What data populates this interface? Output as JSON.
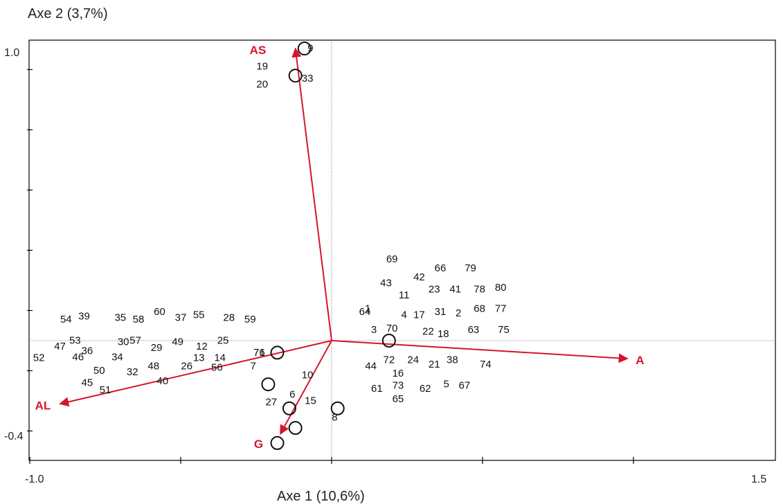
{
  "chart_data": {
    "type": "scatter",
    "title": "",
    "xlabel": "Axe 1 (10,6%)",
    "ylabel": "Axe 2 (3,7%)",
    "xlim": [
      -1.0,
      1.5
    ],
    "ylim": [
      -0.4,
      1.0
    ],
    "x_tick_labels": [
      "-1.0",
      "1.5"
    ],
    "y_tick_labels": [
      "1.0",
      "-0.4"
    ],
    "x_ticks": [
      -1.0,
      -0.5,
      0.0,
      0.5,
      1.0
    ],
    "y_ticks": [
      -0.3,
      -0.1,
      0.1,
      0.3,
      0.5,
      0.7,
      0.9
    ],
    "reference_lines": {
      "x": 0,
      "y": 0
    },
    "vector_color": "#d7142b",
    "vectors": [
      {
        "name": "AS",
        "x": -0.12,
        "y": 0.97
      },
      {
        "name": "A",
        "x": 0.98,
        "y": -0.06
      },
      {
        "name": "AL",
        "x": -0.9,
        "y": -0.21
      },
      {
        "name": "G",
        "x": -0.17,
        "y": -0.31
      }
    ],
    "circles": [
      {
        "x": -0.09,
        "y": 0.97
      },
      {
        "x": -0.12,
        "y": 0.88
      },
      {
        "x": 0.19,
        "y": 0.0
      },
      {
        "x": -0.18,
        "y": -0.04
      },
      {
        "x": -0.21,
        "y": -0.145
      },
      {
        "x": -0.14,
        "y": -0.225
      },
      {
        "x": 0.02,
        "y": -0.225
      },
      {
        "x": -0.12,
        "y": -0.29
      },
      {
        "x": -0.18,
        "y": -0.34
      }
    ],
    "points": [
      {
        "label": "9",
        "x": -0.07,
        "y": 0.96
      },
      {
        "label": "19",
        "x": -0.23,
        "y": 0.9
      },
      {
        "label": "33",
        "x": -0.08,
        "y": 0.86
      },
      {
        "label": "20",
        "x": -0.23,
        "y": 0.84
      },
      {
        "label": "69",
        "x": 0.2,
        "y": 0.26
      },
      {
        "label": "66",
        "x": 0.36,
        "y": 0.23
      },
      {
        "label": "79",
        "x": 0.46,
        "y": 0.23
      },
      {
        "label": "42",
        "x": 0.29,
        "y": 0.2
      },
      {
        "label": "43",
        "x": 0.18,
        "y": 0.18
      },
      {
        "label": "23",
        "x": 0.34,
        "y": 0.16
      },
      {
        "label": "41",
        "x": 0.41,
        "y": 0.16
      },
      {
        "label": "78",
        "x": 0.49,
        "y": 0.16
      },
      {
        "label": "80",
        "x": 0.56,
        "y": 0.165
      },
      {
        "label": "11",
        "x": 0.24,
        "y": 0.14
      },
      {
        "label": "1",
        "x": 0.12,
        "y": 0.095
      },
      {
        "label": "64",
        "x": 0.11,
        "y": 0.085
      },
      {
        "label": "68",
        "x": 0.49,
        "y": 0.095
      },
      {
        "label": "77",
        "x": 0.56,
        "y": 0.095
      },
      {
        "label": "31",
        "x": 0.36,
        "y": 0.085
      },
      {
        "label": "2",
        "x": 0.42,
        "y": 0.08
      },
      {
        "label": "4",
        "x": 0.24,
        "y": 0.075
      },
      {
        "label": "17",
        "x": 0.29,
        "y": 0.075
      },
      {
        "label": "70",
        "x": 0.2,
        "y": 0.03
      },
      {
        "label": "3",
        "x": 0.14,
        "y": 0.025
      },
      {
        "label": "63",
        "x": 0.47,
        "y": 0.025
      },
      {
        "label": "75",
        "x": 0.57,
        "y": 0.025
      },
      {
        "label": "22",
        "x": 0.32,
        "y": 0.02
      },
      {
        "label": "18",
        "x": 0.37,
        "y": 0.012
      },
      {
        "label": "72",
        "x": 0.19,
        "y": -0.075
      },
      {
        "label": "24",
        "x": 0.27,
        "y": -0.075
      },
      {
        "label": "38",
        "x": 0.4,
        "y": -0.075
      },
      {
        "label": "44",
        "x": 0.13,
        "y": -0.095
      },
      {
        "label": "21",
        "x": 0.34,
        "y": -0.09
      },
      {
        "label": "74",
        "x": 0.51,
        "y": -0.09
      },
      {
        "label": "16",
        "x": 0.22,
        "y": -0.12
      },
      {
        "label": "73",
        "x": 0.22,
        "y": -0.16
      },
      {
        "label": "5",
        "x": 0.38,
        "y": -0.155
      },
      {
        "label": "67",
        "x": 0.44,
        "y": -0.16
      },
      {
        "label": "61",
        "x": 0.15,
        "y": -0.17
      },
      {
        "label": "62",
        "x": 0.31,
        "y": -0.17
      },
      {
        "label": "65",
        "x": 0.22,
        "y": -0.205
      },
      {
        "label": "8",
        "x": 0.01,
        "y": -0.265
      },
      {
        "label": "39",
        "x": -0.82,
        "y": 0.07
      },
      {
        "label": "54",
        "x": -0.88,
        "y": 0.06
      },
      {
        "label": "60",
        "x": -0.57,
        "y": 0.085
      },
      {
        "label": "55",
        "x": -0.44,
        "y": 0.075
      },
      {
        "label": "37",
        "x": -0.5,
        "y": 0.065
      },
      {
        "label": "35",
        "x": -0.7,
        "y": 0.065
      },
      {
        "label": "58",
        "x": -0.64,
        "y": 0.06
      },
      {
        "label": "28",
        "x": -0.34,
        "y": 0.065
      },
      {
        "label": "59",
        "x": -0.27,
        "y": 0.06
      },
      {
        "label": "53",
        "x": -0.85,
        "y": -0.01
      },
      {
        "label": "57",
        "x": -0.65,
        "y": -0.01
      },
      {
        "label": "30",
        "x": -0.69,
        "y": -0.015
      },
      {
        "label": "49",
        "x": -0.51,
        "y": -0.015
      },
      {
        "label": "25",
        "x": -0.36,
        "y": -0.01
      },
      {
        "label": "47",
        "x": -0.9,
        "y": -0.03
      },
      {
        "label": "29",
        "x": -0.58,
        "y": -0.035
      },
      {
        "label": "12",
        "x": -0.43,
        "y": -0.03
      },
      {
        "label": "36",
        "x": -0.81,
        "y": -0.045
      },
      {
        "label": "71",
        "x": -0.24,
        "y": -0.05
      },
      {
        "label": "76",
        "x": -0.24,
        "y": -0.05
      },
      {
        "label": "46",
        "x": -0.84,
        "y": -0.065
      },
      {
        "label": "52",
        "x": -0.97,
        "y": -0.068
      },
      {
        "label": "34",
        "x": -0.71,
        "y": -0.065
      },
      {
        "label": "13",
        "x": -0.44,
        "y": -0.068
      },
      {
        "label": "14",
        "x": -0.37,
        "y": -0.068
      },
      {
        "label": "48",
        "x": -0.59,
        "y": -0.095
      },
      {
        "label": "26",
        "x": -0.48,
        "y": -0.095
      },
      {
        "label": "56",
        "x": -0.38,
        "y": -0.1
      },
      {
        "label": "7",
        "x": -0.26,
        "y": -0.095
      },
      {
        "label": "50",
        "x": -0.77,
        "y": -0.11
      },
      {
        "label": "32",
        "x": -0.66,
        "y": -0.115
      },
      {
        "label": "10",
        "x": -0.08,
        "y": -0.125
      },
      {
        "label": "45",
        "x": -0.81,
        "y": -0.15
      },
      {
        "label": "40",
        "x": -0.56,
        "y": -0.145
      },
      {
        "label": "51",
        "x": -0.75,
        "y": -0.175
      },
      {
        "label": "6",
        "x": -0.13,
        "y": -0.19
      },
      {
        "label": "27",
        "x": -0.2,
        "y": -0.215
      },
      {
        "label": "15",
        "x": -0.07,
        "y": -0.21
      }
    ]
  }
}
